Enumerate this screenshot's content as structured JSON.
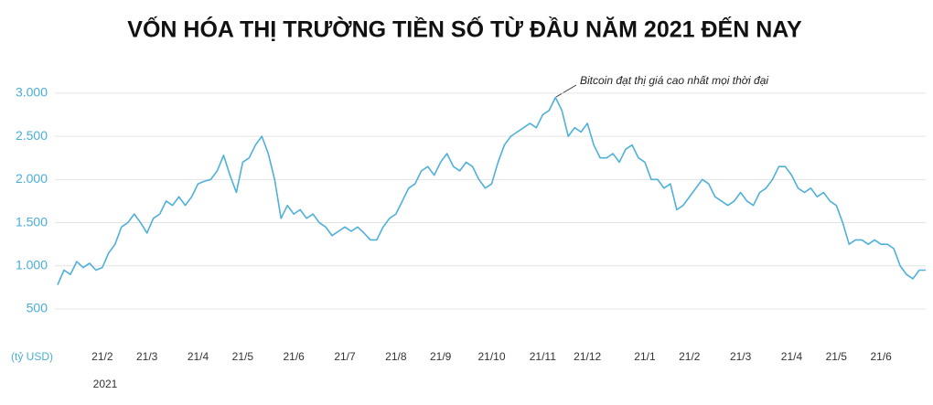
{
  "chart_data": {
    "type": "line",
    "title": "VỐN HÓA THỊ TRƯỜNG TIỀN SỐ TỪ ĐẦU NĂM 2021 ĐẾN NAY",
    "y_unit_label": "(tỷ USD)",
    "year_label": "2021",
    "annotation": "Bitcoin đạt thị giá cao nhất mọi thời đại",
    "color": "#4fb0d8",
    "grid": true,
    "ylim": [
      500,
      3200
    ],
    "yticks": [
      500,
      {
        "value": 1000,
        "label": "1.000"
      },
      {
        "value": 1500,
        "label": "1.500"
      },
      {
        "value": 2000,
        "label": "2.000"
      },
      {
        "value": 2500,
        "label": "2.500"
      },
      {
        "value": 3000,
        "label": "3.000"
      }
    ],
    "categories": [
      null,
      null,
      null,
      null,
      null,
      null,
      null,
      "21/2",
      null,
      null,
      null,
      null,
      null,
      null,
      "21/3",
      null,
      null,
      null,
      null,
      null,
      null,
      null,
      "21/4",
      null,
      null,
      null,
      null,
      null,
      null,
      "21/5",
      null,
      null,
      null,
      null,
      null,
      null,
      null,
      "21/6",
      null,
      null,
      null,
      null,
      null,
      null,
      null,
      "21/7",
      null,
      null,
      null,
      null,
      null,
      null,
      null,
      "21/8",
      null,
      null,
      null,
      null,
      null,
      null,
      "21/9",
      null,
      null,
      null,
      null,
      null,
      null,
      null,
      "21/10",
      null,
      null,
      null,
      null,
      null,
      null,
      null,
      "21/11",
      null,
      null,
      null,
      null,
      null,
      null,
      "21/12",
      null,
      null,
      null,
      null,
      null,
      null,
      null,
      null,
      "21/1",
      null,
      null,
      null,
      null,
      null,
      null,
      "21/2",
      null,
      null,
      null,
      null,
      null,
      null,
      null,
      "21/3",
      null,
      null,
      null,
      null,
      null,
      null,
      null,
      "21/4",
      null,
      null,
      null,
      null,
      null,
      null,
      "21/5",
      null,
      null,
      null,
      null,
      null,
      null,
      "21/6",
      null,
      null,
      null,
      null,
      null,
      null,
      null
    ],
    "values": [
      780,
      950,
      900,
      1050,
      980,
      1030,
      950,
      980,
      1150,
      1250,
      1450,
      1500,
      1600,
      1500,
      1380,
      1550,
      1600,
      1750,
      1700,
      1800,
      1700,
      1800,
      1950,
      1980,
      2000,
      2100,
      2280,
      2050,
      1850,
      2200,
      2250,
      2400,
      2500,
      2300,
      2000,
      1550,
      1700,
      1600,
      1650,
      1550,
      1600,
      1500,
      1450,
      1350,
      1400,
      1450,
      1400,
      1450,
      1380,
      1300,
      1300,
      1450,
      1550,
      1600,
      1750,
      1900,
      1950,
      2100,
      2150,
      2050,
      2200,
      2300,
      2150,
      2100,
      2200,
      2150,
      2000,
      1900,
      1950,
      2200,
      2400,
      2500,
      2550,
      2600,
      2650,
      2600,
      2750,
      2800,
      2950,
      2800,
      2500,
      2600,
      2550,
      2650,
      2400,
      2250,
      2250,
      2300,
      2200,
      2350,
      2400,
      2250,
      2200,
      2000,
      2000,
      1900,
      1950,
      1650,
      1700,
      1800,
      1900,
      2000,
      1950,
      1800,
      1750,
      1700,
      1750,
      1850,
      1750,
      1700,
      1850,
      1900,
      2000,
      2150,
      2150,
      2050,
      1900,
      1850,
      1900,
      1800,
      1850,
      1750,
      1700,
      1500,
      1250,
      1300,
      1300,
      1250,
      1300,
      1250,
      1250,
      1200,
      1000,
      900,
      850,
      950,
      950
    ]
  }
}
